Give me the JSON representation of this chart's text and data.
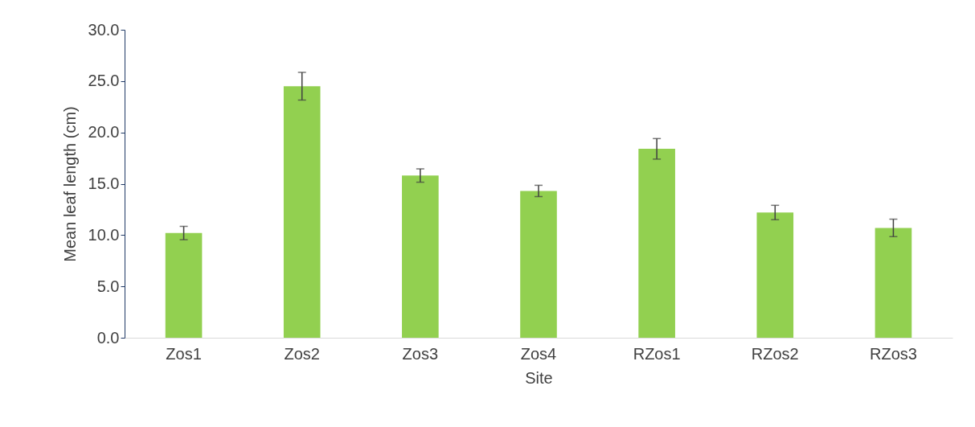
{
  "chart_data": {
    "type": "bar",
    "xlabel": "Site",
    "ylabel": "Mean leaf length (cm)",
    "categories": [
      "Zos1",
      "Zos2",
      "Zos3",
      "Zos4",
      "RZos1",
      "RZos2",
      "RZos3"
    ],
    "values": [
      10.2,
      24.5,
      15.8,
      14.3,
      18.4,
      12.2,
      10.7
    ],
    "errors": [
      0.65,
      1.35,
      0.65,
      0.55,
      1.0,
      0.7,
      0.85
    ],
    "color": "#92d050",
    "ylim": [
      0,
      30
    ],
    "yticks": [
      {
        "value": 0,
        "label": "0.0"
      },
      {
        "value": 5,
        "label": "5.0"
      },
      {
        "value": 10,
        "label": "10.0"
      },
      {
        "value": 15,
        "label": "15.0"
      },
      {
        "value": 20,
        "label": "20.0"
      },
      {
        "value": 25,
        "label": "25.0"
      },
      {
        "value": 30,
        "label": "30.0"
      }
    ],
    "grid": false
  }
}
